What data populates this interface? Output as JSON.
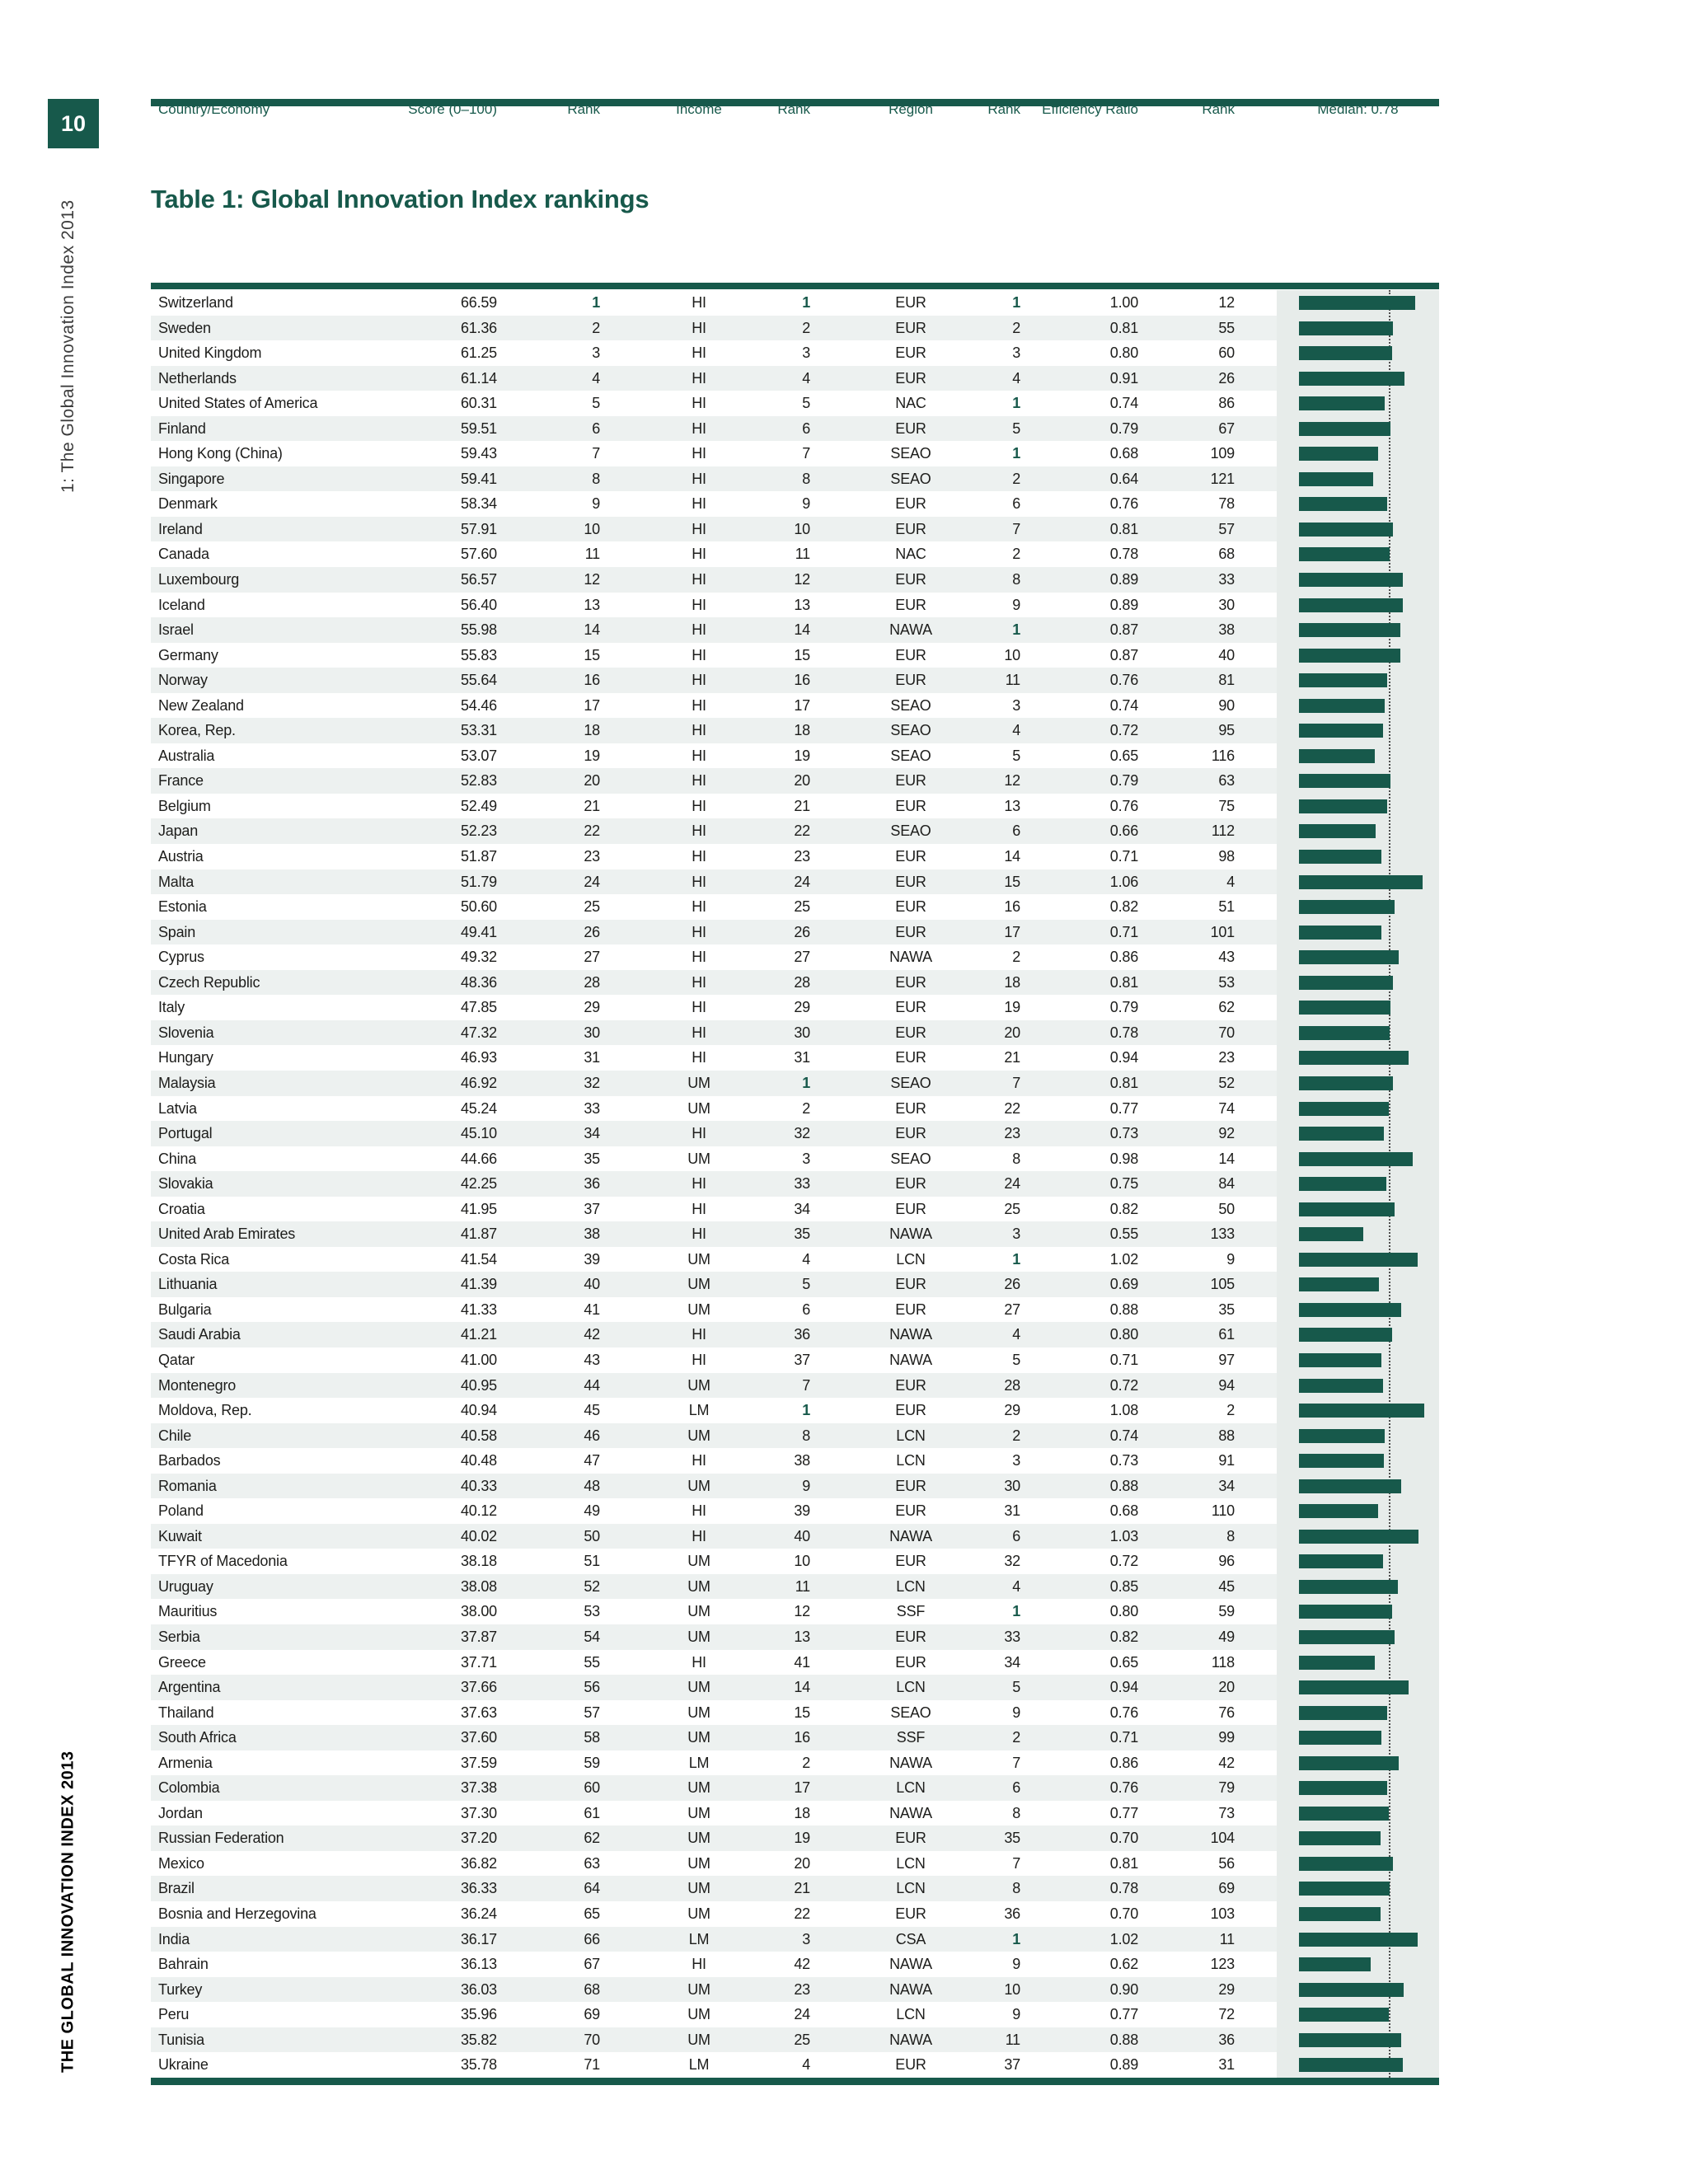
{
  "page": {
    "number": "10",
    "sidebar_top": "1: The Global Innovation Index 2013",
    "sidebar_bottom": "THE GLOBAL INNOVATION INDEX 2013"
  },
  "title": "Table 1: Global Innovation Index rankings",
  "colors": {
    "green": "#17594B",
    "stripe": "#EDF1F0",
    "chart_background": "#E7ECEA",
    "text": "#1D1D1B"
  },
  "table": {
    "headers": {
      "country": "Country/Economy",
      "score": "Score (0–100)",
      "rank": "Rank",
      "income": "Income",
      "income_rank": "Rank",
      "region": "Region",
      "region_rank": "Rank",
      "efficiency": "Efficiency Ratio",
      "efficiency_rank": "Rank",
      "median": "Median: 0.78"
    },
    "median_value": 0.78,
    "rows": [
      {
        "country": "Switzerland",
        "score": "66.59",
        "rank": "1",
        "income": "HI",
        "income_rank": "1",
        "region": "EUR",
        "region_rank": "1",
        "efficiency": "1.00",
        "efficiency_rank": "12"
      },
      {
        "country": "Sweden",
        "score": "61.36",
        "rank": "2",
        "income": "HI",
        "income_rank": "2",
        "region": "EUR",
        "region_rank": "2",
        "efficiency": "0.81",
        "efficiency_rank": "55"
      },
      {
        "country": "United Kingdom",
        "score": "61.25",
        "rank": "3",
        "income": "HI",
        "income_rank": "3",
        "region": "EUR",
        "region_rank": "3",
        "efficiency": "0.80",
        "efficiency_rank": "60"
      },
      {
        "country": "Netherlands",
        "score": "61.14",
        "rank": "4",
        "income": "HI",
        "income_rank": "4",
        "region": "EUR",
        "region_rank": "4",
        "efficiency": "0.91",
        "efficiency_rank": "26"
      },
      {
        "country": "United States of America",
        "score": "60.31",
        "rank": "5",
        "income": "HI",
        "income_rank": "5",
        "region": "NAC",
        "region_rank": "1",
        "efficiency": "0.74",
        "efficiency_rank": "86"
      },
      {
        "country": "Finland",
        "score": "59.51",
        "rank": "6",
        "income": "HI",
        "income_rank": "6",
        "region": "EUR",
        "region_rank": "5",
        "efficiency": "0.79",
        "efficiency_rank": "67"
      },
      {
        "country": "Hong Kong (China)",
        "score": "59.43",
        "rank": "7",
        "income": "HI",
        "income_rank": "7",
        "region": "SEAO",
        "region_rank": "1",
        "efficiency": "0.68",
        "efficiency_rank": "109"
      },
      {
        "country": "Singapore",
        "score": "59.41",
        "rank": "8",
        "income": "HI",
        "income_rank": "8",
        "region": "SEAO",
        "region_rank": "2",
        "efficiency": "0.64",
        "efficiency_rank": "121"
      },
      {
        "country": "Denmark",
        "score": "58.34",
        "rank": "9",
        "income": "HI",
        "income_rank": "9",
        "region": "EUR",
        "region_rank": "6",
        "efficiency": "0.76",
        "efficiency_rank": "78"
      },
      {
        "country": "Ireland",
        "score": "57.91",
        "rank": "10",
        "income": "HI",
        "income_rank": "10",
        "region": "EUR",
        "region_rank": "7",
        "efficiency": "0.81",
        "efficiency_rank": "57"
      },
      {
        "country": "Canada",
        "score": "57.60",
        "rank": "11",
        "income": "HI",
        "income_rank": "11",
        "region": "NAC",
        "region_rank": "2",
        "efficiency": "0.78",
        "efficiency_rank": "68"
      },
      {
        "country": "Luxembourg",
        "score": "56.57",
        "rank": "12",
        "income": "HI",
        "income_rank": "12",
        "region": "EUR",
        "region_rank": "8",
        "efficiency": "0.89",
        "efficiency_rank": "33"
      },
      {
        "country": "Iceland",
        "score": "56.40",
        "rank": "13",
        "income": "HI",
        "income_rank": "13",
        "region": "EUR",
        "region_rank": "9",
        "efficiency": "0.89",
        "efficiency_rank": "30"
      },
      {
        "country": "Israel",
        "score": "55.98",
        "rank": "14",
        "income": "HI",
        "income_rank": "14",
        "region": "NAWA",
        "region_rank": "1",
        "efficiency": "0.87",
        "efficiency_rank": "38"
      },
      {
        "country": "Germany",
        "score": "55.83",
        "rank": "15",
        "income": "HI",
        "income_rank": "15",
        "region": "EUR",
        "region_rank": "10",
        "efficiency": "0.87",
        "efficiency_rank": "40"
      },
      {
        "country": "Norway",
        "score": "55.64",
        "rank": "16",
        "income": "HI",
        "income_rank": "16",
        "region": "EUR",
        "region_rank": "11",
        "efficiency": "0.76",
        "efficiency_rank": "81"
      },
      {
        "country": "New Zealand",
        "score": "54.46",
        "rank": "17",
        "income": "HI",
        "income_rank": "17",
        "region": "SEAO",
        "region_rank": "3",
        "efficiency": "0.74",
        "efficiency_rank": "90"
      },
      {
        "country": "Korea, Rep.",
        "score": "53.31",
        "rank": "18",
        "income": "HI",
        "income_rank": "18",
        "region": "SEAO",
        "region_rank": "4",
        "efficiency": "0.72",
        "efficiency_rank": "95"
      },
      {
        "country": "Australia",
        "score": "53.07",
        "rank": "19",
        "income": "HI",
        "income_rank": "19",
        "region": "SEAO",
        "region_rank": "5",
        "efficiency": "0.65",
        "efficiency_rank": "116"
      },
      {
        "country": "France",
        "score": "52.83",
        "rank": "20",
        "income": "HI",
        "income_rank": "20",
        "region": "EUR",
        "region_rank": "12",
        "efficiency": "0.79",
        "efficiency_rank": "63"
      },
      {
        "country": "Belgium",
        "score": "52.49",
        "rank": "21",
        "income": "HI",
        "income_rank": "21",
        "region": "EUR",
        "region_rank": "13",
        "efficiency": "0.76",
        "efficiency_rank": "75"
      },
      {
        "country": "Japan",
        "score": "52.23",
        "rank": "22",
        "income": "HI",
        "income_rank": "22",
        "region": "SEAO",
        "region_rank": "6",
        "efficiency": "0.66",
        "efficiency_rank": "112"
      },
      {
        "country": "Austria",
        "score": "51.87",
        "rank": "23",
        "income": "HI",
        "income_rank": "23",
        "region": "EUR",
        "region_rank": "14",
        "efficiency": "0.71",
        "efficiency_rank": "98"
      },
      {
        "country": "Malta",
        "score": "51.79",
        "rank": "24",
        "income": "HI",
        "income_rank": "24",
        "region": "EUR",
        "region_rank": "15",
        "efficiency": "1.06",
        "efficiency_rank": "4"
      },
      {
        "country": "Estonia",
        "score": "50.60",
        "rank": "25",
        "income": "HI",
        "income_rank": "25",
        "region": "EUR",
        "region_rank": "16",
        "efficiency": "0.82",
        "efficiency_rank": "51"
      },
      {
        "country": "Spain",
        "score": "49.41",
        "rank": "26",
        "income": "HI",
        "income_rank": "26",
        "region": "EUR",
        "region_rank": "17",
        "efficiency": "0.71",
        "efficiency_rank": "101"
      },
      {
        "country": "Cyprus",
        "score": "49.32",
        "rank": "27",
        "income": "HI",
        "income_rank": "27",
        "region": "NAWA",
        "region_rank": "2",
        "efficiency": "0.86",
        "efficiency_rank": "43"
      },
      {
        "country": "Czech Republic",
        "score": "48.36",
        "rank": "28",
        "income": "HI",
        "income_rank": "28",
        "region": "EUR",
        "region_rank": "18",
        "efficiency": "0.81",
        "efficiency_rank": "53"
      },
      {
        "country": "Italy",
        "score": "47.85",
        "rank": "29",
        "income": "HI",
        "income_rank": "29",
        "region": "EUR",
        "region_rank": "19",
        "efficiency": "0.79",
        "efficiency_rank": "62"
      },
      {
        "country": "Slovenia",
        "score": "47.32",
        "rank": "30",
        "income": "HI",
        "income_rank": "30",
        "region": "EUR",
        "region_rank": "20",
        "efficiency": "0.78",
        "efficiency_rank": "70"
      },
      {
        "country": "Hungary",
        "score": "46.93",
        "rank": "31",
        "income": "HI",
        "income_rank": "31",
        "region": "EUR",
        "region_rank": "21",
        "efficiency": "0.94",
        "efficiency_rank": "23"
      },
      {
        "country": "Malaysia",
        "score": "46.92",
        "rank": "32",
        "income": "UM",
        "income_rank": "1",
        "region": "SEAO",
        "region_rank": "7",
        "efficiency": "0.81",
        "efficiency_rank": "52"
      },
      {
        "country": "Latvia",
        "score": "45.24",
        "rank": "33",
        "income": "UM",
        "income_rank": "2",
        "region": "EUR",
        "region_rank": "22",
        "efficiency": "0.77",
        "efficiency_rank": "74"
      },
      {
        "country": "Portugal",
        "score": "45.10",
        "rank": "34",
        "income": "HI",
        "income_rank": "32",
        "region": "EUR",
        "region_rank": "23",
        "efficiency": "0.73",
        "efficiency_rank": "92"
      },
      {
        "country": "China",
        "score": "44.66",
        "rank": "35",
        "income": "UM",
        "income_rank": "3",
        "region": "SEAO",
        "region_rank": "8",
        "efficiency": "0.98",
        "efficiency_rank": "14"
      },
      {
        "country": "Slovakia",
        "score": "42.25",
        "rank": "36",
        "income": "HI",
        "income_rank": "33",
        "region": "EUR",
        "region_rank": "24",
        "efficiency": "0.75",
        "efficiency_rank": "84"
      },
      {
        "country": "Croatia",
        "score": "41.95",
        "rank": "37",
        "income": "HI",
        "income_rank": "34",
        "region": "EUR",
        "region_rank": "25",
        "efficiency": "0.82",
        "efficiency_rank": "50"
      },
      {
        "country": "United Arab Emirates",
        "score": "41.87",
        "rank": "38",
        "income": "HI",
        "income_rank": "35",
        "region": "NAWA",
        "region_rank": "3",
        "efficiency": "0.55",
        "efficiency_rank": "133"
      },
      {
        "country": "Costa Rica",
        "score": "41.54",
        "rank": "39",
        "income": "UM",
        "income_rank": "4",
        "region": "LCN",
        "region_rank": "1",
        "efficiency": "1.02",
        "efficiency_rank": "9"
      },
      {
        "country": "Lithuania",
        "score": "41.39",
        "rank": "40",
        "income": "UM",
        "income_rank": "5",
        "region": "EUR",
        "region_rank": "26",
        "efficiency": "0.69",
        "efficiency_rank": "105"
      },
      {
        "country": "Bulgaria",
        "score": "41.33",
        "rank": "41",
        "income": "UM",
        "income_rank": "6",
        "region": "EUR",
        "region_rank": "27",
        "efficiency": "0.88",
        "efficiency_rank": "35"
      },
      {
        "country": "Saudi Arabia",
        "score": "41.21",
        "rank": "42",
        "income": "HI",
        "income_rank": "36",
        "region": "NAWA",
        "region_rank": "4",
        "efficiency": "0.80",
        "efficiency_rank": "61"
      },
      {
        "country": "Qatar",
        "score": "41.00",
        "rank": "43",
        "income": "HI",
        "income_rank": "37",
        "region": "NAWA",
        "region_rank": "5",
        "efficiency": "0.71",
        "efficiency_rank": "97"
      },
      {
        "country": "Montenegro",
        "score": "40.95",
        "rank": "44",
        "income": "UM",
        "income_rank": "7",
        "region": "EUR",
        "region_rank": "28",
        "efficiency": "0.72",
        "efficiency_rank": "94"
      },
      {
        "country": "Moldova, Rep.",
        "score": "40.94",
        "rank": "45",
        "income": "LM",
        "income_rank": "1",
        "region": "EUR",
        "region_rank": "29",
        "efficiency": "1.08",
        "efficiency_rank": "2"
      },
      {
        "country": "Chile",
        "score": "40.58",
        "rank": "46",
        "income": "UM",
        "income_rank": "8",
        "region": "LCN",
        "region_rank": "2",
        "efficiency": "0.74",
        "efficiency_rank": "88"
      },
      {
        "country": "Barbados",
        "score": "40.48",
        "rank": "47",
        "income": "HI",
        "income_rank": "38",
        "region": "LCN",
        "region_rank": "3",
        "efficiency": "0.73",
        "efficiency_rank": "91"
      },
      {
        "country": "Romania",
        "score": "40.33",
        "rank": "48",
        "income": "UM",
        "income_rank": "9",
        "region": "EUR",
        "region_rank": "30",
        "efficiency": "0.88",
        "efficiency_rank": "34"
      },
      {
        "country": "Poland",
        "score": "40.12",
        "rank": "49",
        "income": "HI",
        "income_rank": "39",
        "region": "EUR",
        "region_rank": "31",
        "efficiency": "0.68",
        "efficiency_rank": "110"
      },
      {
        "country": "Kuwait",
        "score": "40.02",
        "rank": "50",
        "income": "HI",
        "income_rank": "40",
        "region": "NAWA",
        "region_rank": "6",
        "efficiency": "1.03",
        "efficiency_rank": "8"
      },
      {
        "country": "TFYR of Macedonia",
        "score": "38.18",
        "rank": "51",
        "income": "UM",
        "income_rank": "10",
        "region": "EUR",
        "region_rank": "32",
        "efficiency": "0.72",
        "efficiency_rank": "96"
      },
      {
        "country": "Uruguay",
        "score": "38.08",
        "rank": "52",
        "income": "UM",
        "income_rank": "11",
        "region": "LCN",
        "region_rank": "4",
        "efficiency": "0.85",
        "efficiency_rank": "45"
      },
      {
        "country": "Mauritius",
        "score": "38.00",
        "rank": "53",
        "income": "UM",
        "income_rank": "12",
        "region": "SSF",
        "region_rank": "1",
        "efficiency": "0.80",
        "efficiency_rank": "59"
      },
      {
        "country": "Serbia",
        "score": "37.87",
        "rank": "54",
        "income": "UM",
        "income_rank": "13",
        "region": "EUR",
        "region_rank": "33",
        "efficiency": "0.82",
        "efficiency_rank": "49"
      },
      {
        "country": "Greece",
        "score": "37.71",
        "rank": "55",
        "income": "HI",
        "income_rank": "41",
        "region": "EUR",
        "region_rank": "34",
        "efficiency": "0.65",
        "efficiency_rank": "118"
      },
      {
        "country": "Argentina",
        "score": "37.66",
        "rank": "56",
        "income": "UM",
        "income_rank": "14",
        "region": "LCN",
        "region_rank": "5",
        "efficiency": "0.94",
        "efficiency_rank": "20"
      },
      {
        "country": "Thailand",
        "score": "37.63",
        "rank": "57",
        "income": "UM",
        "income_rank": "15",
        "region": "SEAO",
        "region_rank": "9",
        "efficiency": "0.76",
        "efficiency_rank": "76"
      },
      {
        "country": "South Africa",
        "score": "37.60",
        "rank": "58",
        "income": "UM",
        "income_rank": "16",
        "region": "SSF",
        "region_rank": "2",
        "efficiency": "0.71",
        "efficiency_rank": "99"
      },
      {
        "country": "Armenia",
        "score": "37.59",
        "rank": "59",
        "income": "LM",
        "income_rank": "2",
        "region": "NAWA",
        "region_rank": "7",
        "efficiency": "0.86",
        "efficiency_rank": "42"
      },
      {
        "country": "Colombia",
        "score": "37.38",
        "rank": "60",
        "income": "UM",
        "income_rank": "17",
        "region": "LCN",
        "region_rank": "6",
        "efficiency": "0.76",
        "efficiency_rank": "79"
      },
      {
        "country": "Jordan",
        "score": "37.30",
        "rank": "61",
        "income": "UM",
        "income_rank": "18",
        "region": "NAWA",
        "region_rank": "8",
        "efficiency": "0.77",
        "efficiency_rank": "73"
      },
      {
        "country": "Russian Federation",
        "score": "37.20",
        "rank": "62",
        "income": "UM",
        "income_rank": "19",
        "region": "EUR",
        "region_rank": "35",
        "efficiency": "0.70",
        "efficiency_rank": "104"
      },
      {
        "country": "Mexico",
        "score": "36.82",
        "rank": "63",
        "income": "UM",
        "income_rank": "20",
        "region": "LCN",
        "region_rank": "7",
        "efficiency": "0.81",
        "efficiency_rank": "56"
      },
      {
        "country": "Brazil",
        "score": "36.33",
        "rank": "64",
        "income": "UM",
        "income_rank": "21",
        "region": "LCN",
        "region_rank": "8",
        "efficiency": "0.78",
        "efficiency_rank": "69"
      },
      {
        "country": "Bosnia and Herzegovina",
        "score": "36.24",
        "rank": "65",
        "income": "UM",
        "income_rank": "22",
        "region": "EUR",
        "region_rank": "36",
        "efficiency": "0.70",
        "efficiency_rank": "103"
      },
      {
        "country": "India",
        "score": "36.17",
        "rank": "66",
        "income": "LM",
        "income_rank": "3",
        "region": "CSA",
        "region_rank": "1",
        "efficiency": "1.02",
        "efficiency_rank": "11"
      },
      {
        "country": "Bahrain",
        "score": "36.13",
        "rank": "67",
        "income": "HI",
        "income_rank": "42",
        "region": "NAWA",
        "region_rank": "9",
        "efficiency": "0.62",
        "efficiency_rank": "123"
      },
      {
        "country": "Turkey",
        "score": "36.03",
        "rank": "68",
        "income": "UM",
        "income_rank": "23",
        "region": "NAWA",
        "region_rank": "10",
        "efficiency": "0.90",
        "efficiency_rank": "29"
      },
      {
        "country": "Peru",
        "score": "35.96",
        "rank": "69",
        "income": "UM",
        "income_rank": "24",
        "region": "LCN",
        "region_rank": "9",
        "efficiency": "0.77",
        "efficiency_rank": "72"
      },
      {
        "country": "Tunisia",
        "score": "35.82",
        "rank": "70",
        "income": "UM",
        "income_rank": "25",
        "region": "NAWA",
        "region_rank": "11",
        "efficiency": "0.88",
        "efficiency_rank": "36"
      },
      {
        "country": "Ukraine",
        "score": "35.78",
        "rank": "71",
        "income": "LM",
        "income_rank": "4",
        "region": "EUR",
        "region_rank": "37",
        "efficiency": "0.89",
        "efficiency_rank": "31"
      }
    ]
  }
}
